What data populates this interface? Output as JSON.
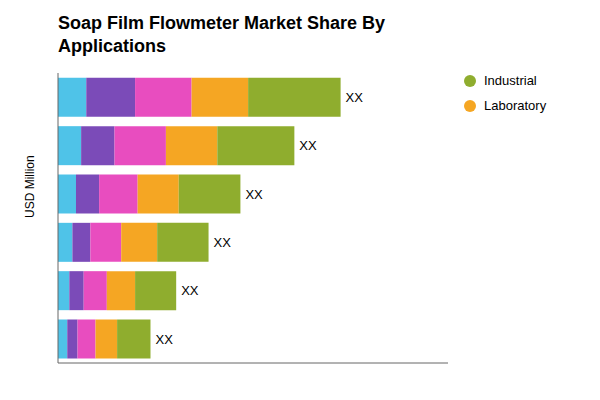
{
  "chart_data": {
    "type": "bar",
    "orientation": "horizontal",
    "stacked": true,
    "title": "Soap Film Flowmeter Market Share By\nApplications",
    "ylabel": "USD Million",
    "categories": [
      null,
      null,
      null,
      null,
      null,
      null
    ],
    "series": [
      {
        "color": "#4fc3e8",
        "values": [
          0.55,
          0.45,
          0.35,
          0.28,
          0.22,
          0.18
        ]
      },
      {
        "color": "#7b4bb8",
        "values": [
          0.95,
          0.65,
          0.45,
          0.35,
          0.28,
          0.2
        ]
      },
      {
        "color": "#e84dbf",
        "values": [
          1.1,
          1.0,
          0.75,
          0.6,
          0.45,
          0.35
        ]
      },
      {
        "name": "Laboratory",
        "color": "#f5a623",
        "values": [
          1.1,
          1.0,
          0.8,
          0.7,
          0.55,
          0.42
        ]
      },
      {
        "name": "Industrial",
        "color": "#8fad2e",
        "values": [
          1.8,
          1.5,
          1.2,
          1.0,
          0.8,
          0.65
        ]
      }
    ],
    "annotations": [
      "XX",
      "XX",
      "XX",
      "XX",
      "XX",
      "XX"
    ],
    "xlim": [
      0,
      7.59
    ],
    "xticks": [],
    "tick_labels": false,
    "grid": false,
    "legend": "upper right"
  }
}
